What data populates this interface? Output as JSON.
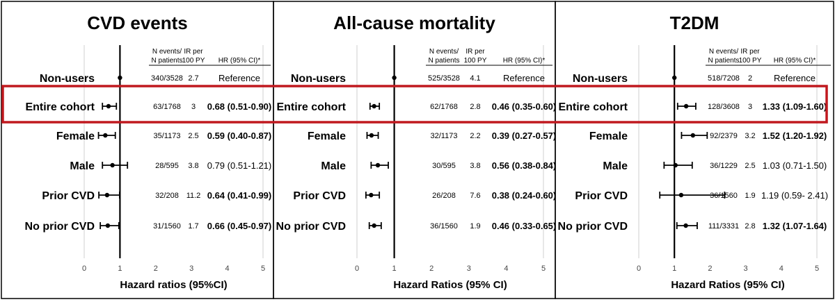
{
  "highlight_row": "Entire cohort",
  "colors": {
    "highlight_border": "#c0191f",
    "marker": "#000000"
  },
  "chart_data": [
    {
      "type": "forest",
      "title": "CVD events",
      "xlabel": "Hazard ratios (95%CI)",
      "xlim": [
        0,
        5
      ],
      "xticks": [
        "0",
        "1",
        "2",
        "3",
        "4",
        "5"
      ],
      "reference_line": 1,
      "grid": false,
      "columns": [
        "N events/\nN patients",
        "IR per\n100 PY",
        "HR (95% CI)*"
      ],
      "rows": [
        {
          "label": "Non-users",
          "events": "340/3528",
          "ir": "2.7",
          "hr_text": "Reference",
          "bold": false,
          "hr": 1,
          "lo": null,
          "hi": null
        },
        {
          "label": "Entire cohort",
          "events": "63/1768",
          "ir": "3",
          "hr_text": "0.68 (0.51-0.90)",
          "bold": true,
          "hr": 0.68,
          "lo": 0.51,
          "hi": 0.9
        },
        {
          "label": "Female",
          "events": "35/1173",
          "ir": "2.5",
          "hr_text": "0.59 (0.40-0.87)",
          "bold": true,
          "hr": 0.59,
          "lo": 0.4,
          "hi": 0.87
        },
        {
          "label": "Male",
          "events": "28/595",
          "ir": "3.8",
          "hr_text": "0.79 (0.51-1.21)",
          "bold": false,
          "hr": 0.79,
          "lo": 0.51,
          "hi": 1.21
        },
        {
          "label": "Prior CVD",
          "events": "32/208",
          "ir": "11.2",
          "hr_text": "0.64 (0.41-0.99)",
          "bold": true,
          "hr": 0.64,
          "lo": 0.41,
          "hi": 0.99
        },
        {
          "label": "No prior CVD",
          "events": "31/1560",
          "ir": "1.7",
          "hr_text": "0.66 (0.45-0.97)",
          "bold": true,
          "hr": 0.66,
          "lo": 0.45,
          "hi": 0.97
        }
      ]
    },
    {
      "type": "forest",
      "title": "All-cause mortality",
      "xlabel": "Hazard Ratios (95% CI)",
      "xlim": [
        0,
        5
      ],
      "xticks": [
        "0",
        "1",
        "2",
        "3",
        "4",
        "5"
      ],
      "reference_line": 1,
      "grid": false,
      "columns": [
        "N events/\nN patients",
        "IR per\n100 PY",
        "HR (95% CI)*"
      ],
      "rows": [
        {
          "label": "Non-users",
          "events": "525/3528",
          "ir": "4.1",
          "hr_text": "Reference",
          "bold": false,
          "hr": 1,
          "lo": null,
          "hi": null
        },
        {
          "label": "Entire cohort",
          "events": "62/1768",
          "ir": "2.8",
          "hr_text": "0.46 (0.35-0.60)",
          "bold": true,
          "hr": 0.46,
          "lo": 0.35,
          "hi": 0.6
        },
        {
          "label": "Female",
          "events": "32/1173",
          "ir": "2.2",
          "hr_text": "0.39 (0.27-0.57)",
          "bold": true,
          "hr": 0.39,
          "lo": 0.27,
          "hi": 0.57
        },
        {
          "label": "Male",
          "events": "30/595",
          "ir": "3.8",
          "hr_text": "0.56 (0.38-0.84)",
          "bold": true,
          "hr": 0.56,
          "lo": 0.38,
          "hi": 0.84
        },
        {
          "label": "Prior CVD",
          "events": "26/208",
          "ir": "7.6",
          "hr_text": "0.38 (0.24-0.60)",
          "bold": true,
          "hr": 0.38,
          "lo": 0.24,
          "hi": 0.6
        },
        {
          "label": "No prior CVD",
          "events": "36/1560",
          "ir": "1.9",
          "hr_text": "0.46 (0.33-0.65)",
          "bold": true,
          "hr": 0.46,
          "lo": 0.33,
          "hi": 0.65
        }
      ]
    },
    {
      "type": "forest",
      "title": "T2DM",
      "xlabel": "Hazard Ratios (95% CI)",
      "xlim": [
        0,
        5
      ],
      "xticks": [
        "0",
        "1",
        "2",
        "3",
        "4",
        "5"
      ],
      "reference_line": 1,
      "grid": false,
      "columns": [
        "N events/\nN patients",
        "IR per\n100 PY",
        "HR (95% CI)*"
      ],
      "rows": [
        {
          "label": "Non-users",
          "events": "518/7208",
          "ir": "2",
          "hr_text": "Reference",
          "bold": false,
          "hr": 1,
          "lo": null,
          "hi": null
        },
        {
          "label": "Entire cohort",
          "events": "128/3608",
          "ir": "3",
          "hr_text": "1.33 (1.09-1.60)",
          "bold": true,
          "hr": 1.33,
          "lo": 1.09,
          "hi": 1.6
        },
        {
          "label": "Female",
          "events": "92/2379",
          "ir": "3.2",
          "hr_text": "1.52 (1.20-1.92)",
          "bold": true,
          "hr": 1.52,
          "lo": 1.2,
          "hi": 1.92
        },
        {
          "label": "Male",
          "events": "36/1229",
          "ir": "2.5",
          "hr_text": "1.03 (0.71-1.50)",
          "bold": false,
          "hr": 1.03,
          "lo": 0.71,
          "hi": 1.5
        },
        {
          "label": "Prior CVD",
          "events": "36/1560",
          "ir": "1.9",
          "hr_text": "1.19 (0.59- 2.41)",
          "bold": false,
          "hr": 1.19,
          "lo": 0.59,
          "hi": 2.41
        },
        {
          "label": "No prior CVD",
          "events": "111/3331",
          "ir": "2.8",
          "hr_text": "1.32 (1.07-1.64)",
          "bold": true,
          "hr": 1.32,
          "lo": 1.07,
          "hi": 1.64
        }
      ]
    }
  ]
}
